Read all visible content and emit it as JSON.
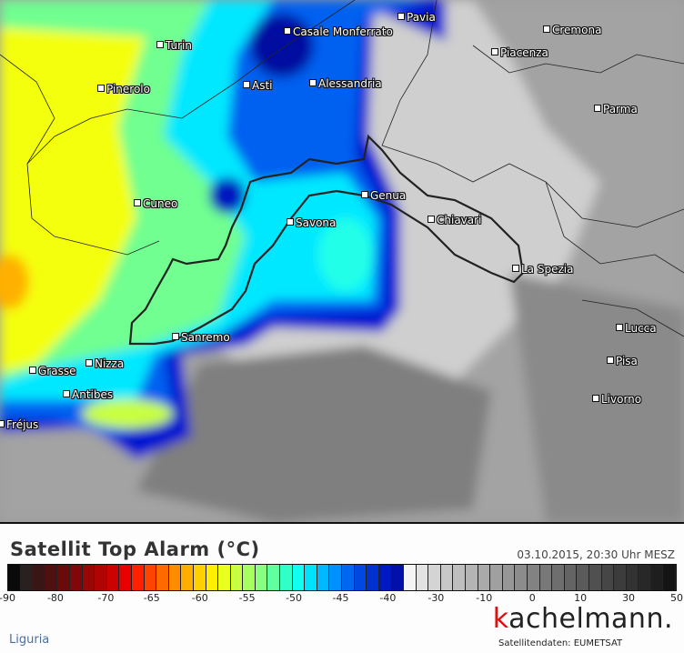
{
  "map": {
    "cities": [
      {
        "name": "Pavia"
      },
      {
        "name": "Cremona"
      },
      {
        "name": "Turin"
      },
      {
        "name": "Casale Monferrato"
      },
      {
        "name": "Piacenza"
      },
      {
        "name": "Asti"
      },
      {
        "name": "Alessandria"
      },
      {
        "name": "Pinerolo"
      },
      {
        "name": "Parma"
      },
      {
        "name": "Cuneo"
      },
      {
        "name": "Genua"
      },
      {
        "name": "Chiavari"
      },
      {
        "name": "Savona"
      },
      {
        "name": "La Spezia"
      },
      {
        "name": "Lucca"
      },
      {
        "name": "Sanremo"
      },
      {
        "name": "Pisa"
      },
      {
        "name": "Nizza"
      },
      {
        "name": "Grasse"
      },
      {
        "name": "Antibes"
      },
      {
        "name": "Livorno"
      },
      {
        "name": "Fréjus"
      }
    ]
  },
  "legend": {
    "title": "Satellit Top Alarm (°C)",
    "timestamp": "03.10.2015, 20:30 Uhr MESZ",
    "ticks": [
      "-90",
      "-80",
      "-70",
      "-65",
      "-60",
      "-55",
      "-50",
      "-45",
      "-40",
      "-30",
      "-10",
      "0",
      "10",
      "30",
      "50"
    ],
    "colors": [
      "#0a0a0a",
      "#2a2020",
      "#3a1515",
      "#501010",
      "#6a0a0a",
      "#800808",
      "#990606",
      "#b00404",
      "#cc0202",
      "#e80000",
      "#ff2000",
      "#ff4400",
      "#ff6a00",
      "#ff8c00",
      "#ffae00",
      "#ffd000",
      "#fff000",
      "#e8ff20",
      "#c8ff40",
      "#a8ff60",
      "#88ff80",
      "#60ffa0",
      "#30ffc8",
      "#10fff0",
      "#00e0ff",
      "#00b8ff",
      "#0090ff",
      "#0068f0",
      "#0048e0",
      "#0030d0",
      "#0018c0",
      "#0010a8",
      "#f4f4f4",
      "#e2e2e2",
      "#d4d4d4",
      "#c8c8c8",
      "#bebebe",
      "#b4b4b4",
      "#aaaaaa",
      "#a0a0a0",
      "#969696",
      "#8c8c8c",
      "#828282",
      "#787878",
      "#6e6e6e",
      "#646464",
      "#5a5a5a",
      "#505050",
      "#464646",
      "#3c3c3c",
      "#323232",
      "#282828",
      "#1e1e1e",
      "#141414"
    ]
  },
  "footer": {
    "region": "Liguria",
    "logo": "kachelmann.",
    "credit": "Satellitendaten: EUMETSAT"
  }
}
